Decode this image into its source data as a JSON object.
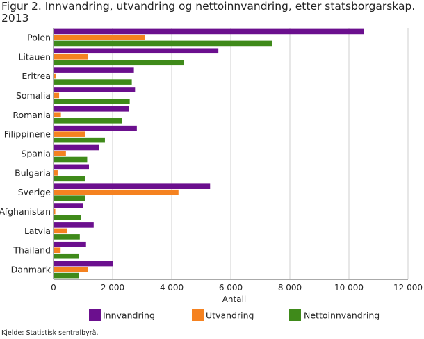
{
  "title": "Figur 2. Innvandring, utvandring og nettoinnvandring, etter statsborgarskap. 2013",
  "source": "Kjelde: Statistisk sentralbyrå.",
  "colors": {
    "innvandring": "#6b0f8e",
    "utvandring": "#f58220",
    "nettoinnvandring": "#3f8a1a",
    "grid": "#cfcfcf",
    "axis": "#555555"
  },
  "chart_data": {
    "type": "bar",
    "orientation": "horizontal",
    "categories": [
      "Polen",
      "Litauen",
      "Eritrea",
      "Somalia",
      "Romania",
      "Filippinene",
      "Spania",
      "Bulgaria",
      "Sverige",
      "Afghanistan",
      "Latvia",
      "Thailand",
      "Danmark"
    ],
    "series": [
      {
        "name": "Innvandring",
        "color": "#6b0f8e",
        "values": [
          10500,
          5580,
          2720,
          2760,
          2560,
          2820,
          1540,
          1200,
          5300,
          1000,
          1360,
          1100,
          2020
        ]
      },
      {
        "name": "Utvandring",
        "color": "#f58220",
        "values": [
          3100,
          1170,
          70,
          190,
          250,
          1080,
          420,
          140,
          4230,
          60,
          470,
          240,
          1170
        ]
      },
      {
        "name": "Nettoinnvandring",
        "color": "#3f8a1a",
        "values": [
          7400,
          4420,
          2650,
          2580,
          2320,
          1740,
          1140,
          1060,
          1060,
          940,
          890,
          860,
          870
        ]
      }
    ],
    "xlabel": "Antall",
    "ylabel": "",
    "xlim": [
      0,
      12000
    ],
    "xticks": [
      0,
      2000,
      4000,
      6000,
      8000,
      10000,
      12000
    ],
    "xtick_labels": [
      "0",
      "2 000",
      "4 000",
      "6 000",
      "8 000",
      "10 000",
      "12 000"
    ],
    "grid": true,
    "legend_position": "bottom"
  }
}
